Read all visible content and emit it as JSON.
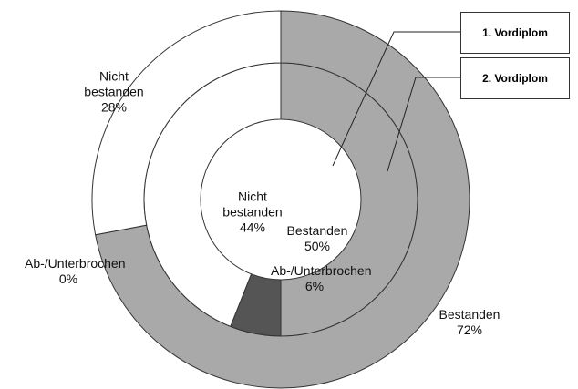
{
  "chart_data": {
    "type": "donut",
    "categories": [
      "Bestanden",
      "Ab-/Unterbrochen",
      "Nicht bestanden"
    ],
    "colors": [
      "#a9a9a9",
      "#555555",
      "#ffffff"
    ],
    "series": [
      {
        "name": "1. Vordiplom",
        "values": [
          50,
          6,
          44
        ],
        "value_labels": [
          "50%",
          "6%",
          "44%"
        ]
      },
      {
        "name": "2. Vordiplom",
        "values": [
          72,
          0,
          28
        ],
        "value_labels": [
          "72%",
          "0%",
          "28%"
        ]
      }
    ]
  }
}
